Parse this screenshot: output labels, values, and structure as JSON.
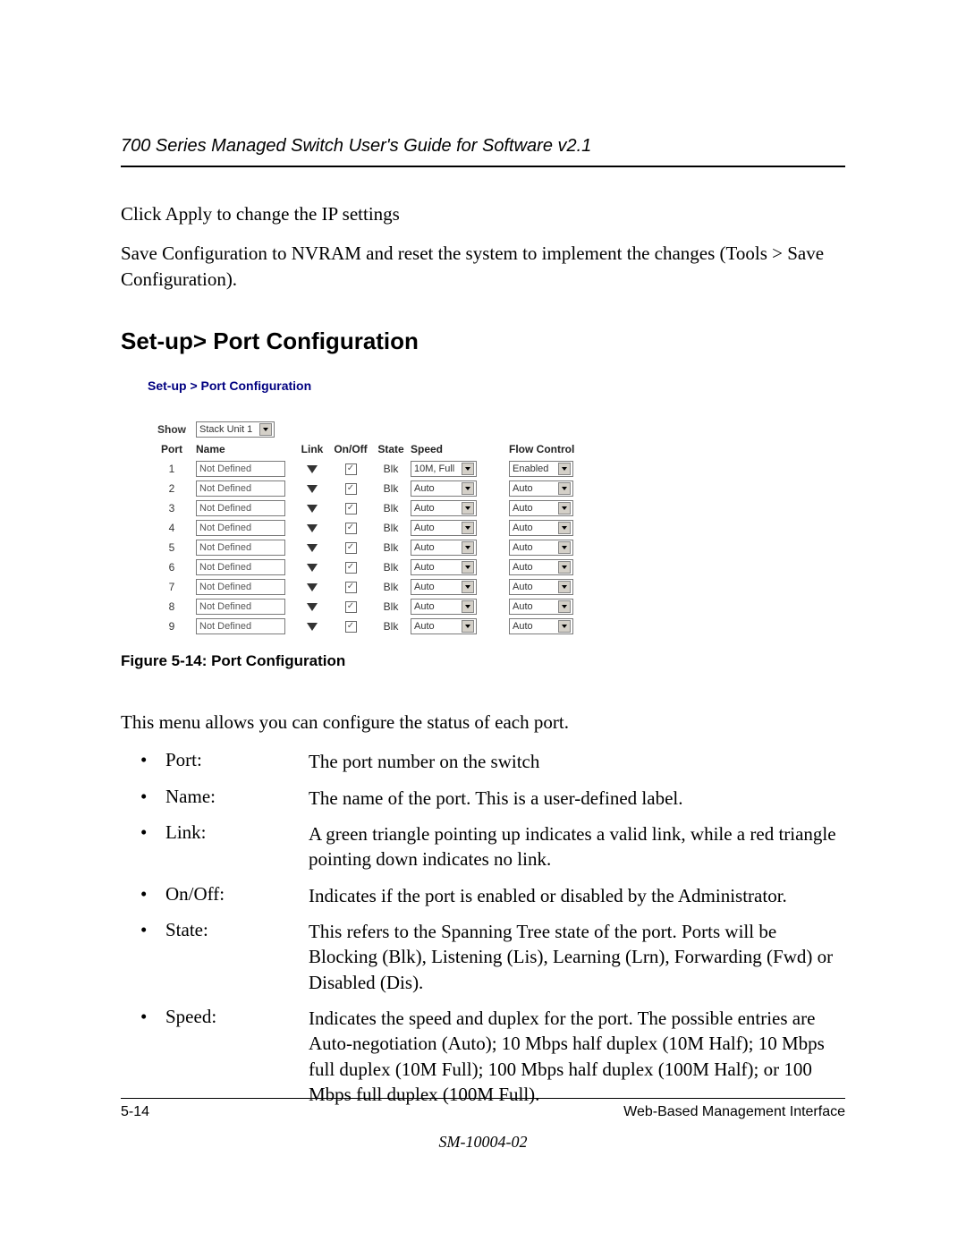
{
  "header": {
    "title": "700 Series Managed Switch User's Guide for Software v2.1"
  },
  "body": {
    "para1": "Click Apply to change the IP settings",
    "para2": "Save Configuration to NVRAM and reset the system to implement the changes (Tools > Save Configuration).",
    "section_heading": "Set-up> Port Configuration",
    "figure": {
      "breadcrumb": "Set-up > Port Configuration",
      "show_label": "Show",
      "stack_select": "Stack Unit 1",
      "headers": {
        "port": "Port",
        "name": "Name",
        "link": "Link",
        "onoff": "On/Off",
        "state": "State",
        "speed": "Speed",
        "flow": "Flow Control"
      },
      "rows": [
        {
          "port": "1",
          "name": "Not Defined",
          "state": "Blk",
          "speed": "10M, Full",
          "flow": "Enabled"
        },
        {
          "port": "2",
          "name": "Not Defined",
          "state": "Blk",
          "speed": "Auto",
          "flow": "Auto"
        },
        {
          "port": "3",
          "name": "Not Defined",
          "state": "Blk",
          "speed": "Auto",
          "flow": "Auto"
        },
        {
          "port": "4",
          "name": "Not Defined",
          "state": "Blk",
          "speed": "Auto",
          "flow": "Auto"
        },
        {
          "port": "5",
          "name": "Not Defined",
          "state": "Blk",
          "speed": "Auto",
          "flow": "Auto"
        },
        {
          "port": "6",
          "name": "Not Defined",
          "state": "Blk",
          "speed": "Auto",
          "flow": "Auto"
        },
        {
          "port": "7",
          "name": "Not Defined",
          "state": "Blk",
          "speed": "Auto",
          "flow": "Auto"
        },
        {
          "port": "8",
          "name": "Not Defined",
          "state": "Blk",
          "speed": "Auto",
          "flow": "Auto"
        },
        {
          "port": "9",
          "name": "Not Defined",
          "state": "Blk",
          "speed": "Auto",
          "flow": "Auto"
        }
      ],
      "caption": "Figure 5-14:  Port Configuration"
    },
    "intro": "This menu allows you can configure the status of each port.",
    "items": [
      {
        "term": "Port:",
        "def": "The port number on the switch"
      },
      {
        "term": "Name:",
        "def": "The name of the port.   This is a user-defined label."
      },
      {
        "term": "Link:",
        "def": "A green triangle pointing up indicates a valid link, while a red triangle pointing down indicates no link."
      },
      {
        "term": "On/Off:",
        "def": "Indicates if the port is enabled or disabled by the Administrator."
      },
      {
        "term": "State:",
        "def": "This refers to the Spanning Tree state of the port.  Ports will be Blocking (Blk), Listening (Lis), Learning (Lrn), Forwarding (Fwd) or Disabled (Dis)."
      },
      {
        "term": "Speed:",
        "def": "Indicates the speed and duplex for the port.  The possible entries are Auto-negotiation (Auto); 10 Mbps half duplex (10M Half); 10 Mbps full duplex (10M Full); 100 Mbps half duplex (100M Half); or 100 Mbps full duplex (100M Full)."
      }
    ]
  },
  "footer": {
    "page_num": "5-14",
    "section": "Web-Based Management Interface",
    "doc_id": "SM-10004-02"
  },
  "colors": {
    "breadcrumb": "#000080",
    "text": "#000000",
    "ui_border": "#7a7a7a",
    "ui_bg": "#d4d0c8"
  }
}
